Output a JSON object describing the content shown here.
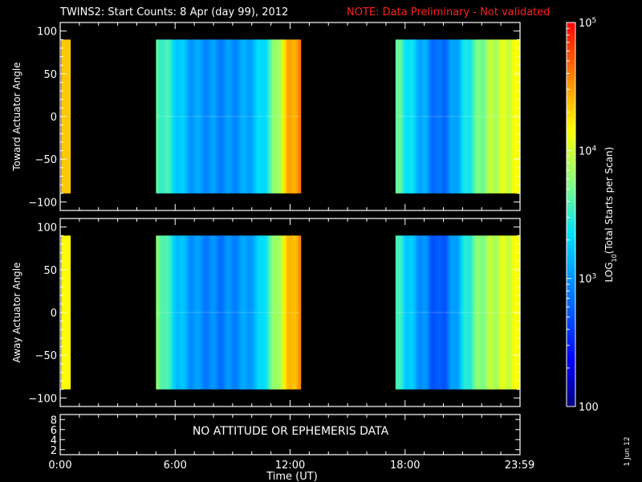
{
  "title": "TWINS2: Start Counts:  8 Apr (day  99), 2012",
  "note": "NOTE: Data Preliminary - Not validated",
  "footer_date": "1 Jun 12",
  "chart_data": [
    {
      "type": "heatmap",
      "panel": "toward",
      "ylabel": "Toward Actuator Angle",
      "ylim": [
        -110,
        110
      ],
      "yticks": [
        "100",
        "50",
        "0",
        "−50",
        "−100"
      ],
      "data_ylim": [
        -90,
        90
      ],
      "xlim": [
        0,
        24
      ],
      "segments": [
        {
          "x0": 0.05,
          "x1": 0.55,
          "level": 0.78
        },
        {
          "x0": 5.0,
          "x1": 12.55,
          "profile": [
            0.55,
            0.5,
            0.42,
            0.36,
            0.34,
            0.33,
            0.32,
            0.33,
            0.35,
            0.4,
            0.48,
            0.62,
            0.8,
            0.86
          ]
        },
        {
          "x0": 17.5,
          "x1": 24.0,
          "profile": [
            0.55,
            0.48,
            0.4,
            0.34,
            0.26,
            0.3,
            0.38,
            0.48,
            0.56,
            0.62,
            0.66,
            0.68,
            0.7
          ]
        }
      ]
    },
    {
      "type": "heatmap",
      "panel": "away",
      "ylabel": "Away Actuator Angle",
      "ylim": [
        -110,
        110
      ],
      "yticks": [
        "100",
        "50",
        "0",
        "−50",
        "−100"
      ],
      "data_ylim": [
        -90,
        90
      ],
      "xlim": [
        0,
        24
      ],
      "segments": [
        {
          "x0": 0.05,
          "x1": 0.55,
          "level": 0.72
        },
        {
          "x0": 5.0,
          "x1": 12.55,
          "profile": [
            0.6,
            0.5,
            0.4,
            0.35,
            0.32,
            0.31,
            0.3,
            0.32,
            0.34,
            0.38,
            0.5,
            0.62,
            0.78,
            0.84
          ]
        },
        {
          "x0": 17.5,
          "x1": 24.0,
          "profile": [
            0.52,
            0.44,
            0.36,
            0.3,
            0.22,
            0.28,
            0.38,
            0.5,
            0.58,
            0.62,
            0.66,
            0.68,
            0.7
          ]
        }
      ]
    },
    {
      "type": "line",
      "panel": "attitude",
      "yticks": [
        "8",
        "6",
        "4",
        "2"
      ],
      "ylim": [
        1,
        9
      ],
      "message": "NO ATTITUDE OR EPHEMERIS DATA"
    }
  ],
  "xaxis": {
    "label": "Time (UT)",
    "ticks": [
      "0:00",
      "6:00",
      "12:00",
      "18:00",
      "23:59"
    ],
    "tick_values": [
      0,
      6,
      12,
      18,
      23.98
    ]
  },
  "colorbar": {
    "label_prefix": "LOG",
    "label_sub": "10",
    "label_suffix": "(Total Starts per Scan)",
    "tick_labels": [
      {
        "base": "10",
        "exp": "5",
        "value": 5
      },
      {
        "base": "10",
        "exp": "4",
        "value": 4
      },
      {
        "base": "10",
        "exp": "3",
        "value": 3
      },
      {
        "plain": "100",
        "value": 2
      }
    ],
    "range": [
      2,
      5
    ]
  }
}
